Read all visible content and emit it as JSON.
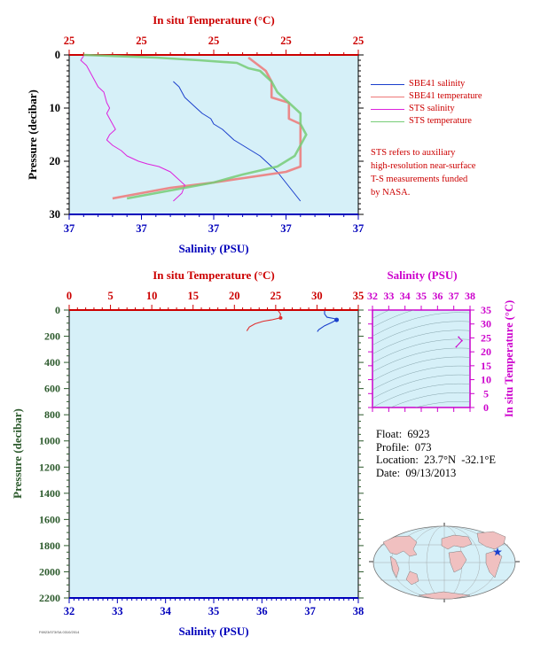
{
  "colors": {
    "panel_bg": "#d6f0f8",
    "temperature_axis": "#cc0000",
    "salinity_axis": "#0000bb",
    "pressure_axis_top": "#000000",
    "pressure_axis_bottom": "#2c5a2c",
    "ts_axis": "#cc00cc",
    "sbe41_salinity": "#1a3fcc",
    "sbe41_temperature": "#ee7777",
    "sts_salinity": "#dd22dd",
    "sts_temperature": "#77cc77"
  },
  "chart_data": [
    {
      "type": "line",
      "name": "near-surface profile",
      "top_axis_label": "In situ Temperature (°C)",
      "top_tick_labels": [
        "25",
        "25",
        "25",
        "25",
        "25"
      ],
      "xlabel": "Salinity (PSU)",
      "bottom_tick_labels": [
        "37",
        "37",
        "37",
        "37",
        "37"
      ],
      "ylabel": "Pressure (decibar)",
      "ylim": [
        30,
        0
      ],
      "yticks": [
        0,
        10,
        20,
        30
      ],
      "series": [
        {
          "name": "SBE41 salinity",
          "axis": "salinity",
          "frac_x": [
            0.36,
            0.38,
            0.39,
            0.4,
            0.42,
            0.44,
            0.46,
            0.49,
            0.5,
            0.53,
            0.55,
            0.57,
            0.6,
            0.63,
            0.66,
            0.68,
            0.7,
            0.72,
            0.8
          ],
          "pressure": [
            5,
            6,
            7,
            8,
            9,
            10,
            11,
            12,
            13,
            14,
            15,
            16,
            17,
            18,
            19,
            20,
            21,
            22,
            27.5
          ]
        },
        {
          "name": "SBE41 temperature",
          "axis": "temperature",
          "frac_x": [
            0.62,
            0.68,
            0.7,
            0.7,
            0.76,
            0.76,
            0.8,
            0.8,
            0.8,
            0.75,
            0.5,
            0.35,
            0.15
          ],
          "pressure": [
            0.5,
            3,
            5,
            8,
            9,
            12,
            13,
            20,
            21,
            22,
            24,
            25,
            27
          ]
        },
        {
          "name": "STS salinity",
          "axis": "salinity",
          "frac_x": [
            0.05,
            0.04,
            0.06,
            0.08,
            0.1,
            0.12,
            0.13,
            0.14,
            0.13,
            0.14,
            0.15,
            0.16,
            0.14,
            0.13,
            0.15,
            0.18,
            0.2,
            0.24,
            0.27,
            0.31,
            0.35,
            0.38,
            0.4,
            0.39,
            0.36
          ],
          "pressure": [
            0.2,
            1,
            2,
            4,
            6,
            7,
            9,
            10,
            11,
            12,
            13,
            14,
            15,
            16,
            17,
            18,
            19,
            20,
            20.5,
            21,
            22,
            23.5,
            24.5,
            26,
            27.5
          ]
        },
        {
          "name": "STS temperature",
          "axis": "temperature",
          "frac_x": [
            0.05,
            0.3,
            0.45,
            0.58,
            0.62,
            0.66,
            0.68,
            0.7,
            0.72,
            0.74,
            0.76,
            0.78,
            0.8,
            0.8,
            0.82,
            0.8,
            0.78,
            0.72,
            0.6,
            0.5,
            0.35,
            0.2
          ],
          "pressure": [
            0,
            0.5,
            1,
            1.5,
            2.5,
            3,
            4,
            5,
            7,
            8,
            9,
            10,
            11,
            13,
            15,
            17,
            19,
            21,
            22.5,
            24,
            25.5,
            27
          ]
        }
      ],
      "legend": [
        "SBE41 salinity",
        "SBE41 temperature",
        "STS salinity",
        "STS temperature"
      ],
      "legend_placement": "right"
    },
    {
      "type": "line",
      "name": "full-depth profile",
      "top_axis_label": "In situ Temperature (°C)",
      "top_ticks": [
        0,
        5,
        10,
        15,
        20,
        25,
        30,
        35
      ],
      "xlim_temperature": [
        0,
        35
      ],
      "xlabel": "Salinity (PSU)",
      "bottom_ticks": [
        32,
        33,
        34,
        35,
        36,
        37,
        38
      ],
      "xlim_salinity": [
        32,
        38
      ],
      "ylabel": "Pressure (decibar)",
      "ylim": [
        2200,
        0
      ],
      "yticks": [
        0,
        200,
        400,
        600,
        800,
        1000,
        1200,
        1400,
        1600,
        1800,
        2000,
        2200
      ],
      "series": [
        {
          "name": "SBE41 temperature",
          "temperature": [
            25.3,
            25.6,
            25.5,
            24.5,
            23.5,
            22.5,
            21.8,
            21.5
          ],
          "pressure": [
            5,
            30,
            60,
            75,
            85,
            105,
            130,
            160
          ]
        },
        {
          "name": "SBE41 salinity",
          "salinity": [
            37.3,
            37.3,
            37.35,
            37.5,
            37.55,
            37.45,
            37.3,
            37.18,
            37.15
          ],
          "pressure": [
            5,
            30,
            55,
            65,
            75,
            95,
            120,
            150,
            165
          ]
        }
      ]
    },
    {
      "type": "scatter",
      "name": "T-S diagram",
      "top_axis_label": "Salinity (PSU)",
      "xticks": [
        32,
        33,
        34,
        35,
        36,
        37,
        38
      ],
      "xlim": [
        32,
        38
      ],
      "ylabel": "In situ Temperature (°C)",
      "yticks": [
        0,
        5,
        10,
        15,
        20,
        25,
        30,
        35
      ],
      "ylim": [
        0,
        35
      ],
      "points": [
        {
          "salinity": 37.3,
          "temperature": 25.3
        },
        {
          "salinity": 37.5,
          "temperature": 24.0
        },
        {
          "salinity": 37.15,
          "temperature": 21.8
        }
      ]
    }
  ],
  "float_info": {
    "float": "Float:  6923",
    "profile": "Profile:  073",
    "location": "Location:  23.7°N  -32.1°E",
    "date": "Date:  09/13/2013"
  },
  "note": [
    "STS refers to auxiliary",
    "high-resolution near-surface",
    "T-S measurements funded",
    "by NASA."
  ],
  "footer": "F6923/073/SA 0310/2014"
}
